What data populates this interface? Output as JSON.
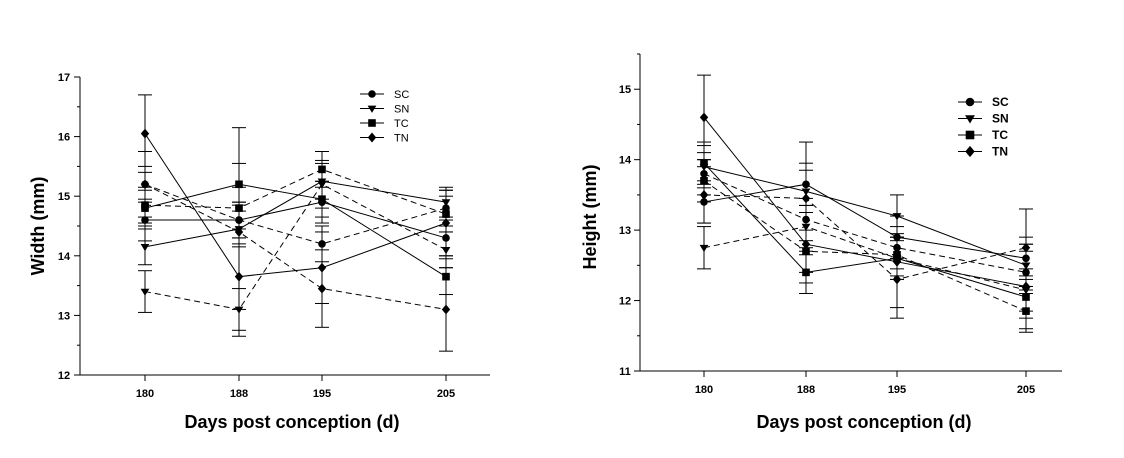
{
  "chart_data": [
    {
      "type": "line",
      "title": "",
      "xlabel": "Days post conception (d)",
      "ylabel": "Width (mm)",
      "x": [
        180,
        188,
        195,
        205
      ],
      "ylim": [
        12,
        17
      ],
      "yticks": [
        12,
        13,
        14,
        15,
        16,
        17
      ],
      "grid": false,
      "legend_position": "top-right",
      "legend": [
        "SC",
        "SN",
        "TC",
        "TN"
      ],
      "series": [
        {
          "marker": "circle",
          "dash": "solid",
          "values": [
            14.6,
            14.6,
            14.9,
            14.3
          ],
          "errors": [
            0.35,
            0.3,
            0.35,
            0.3
          ]
        },
        {
          "marker": "circle",
          "dash": "dashed",
          "values": [
            15.2,
            14.6,
            14.2,
            14.8
          ],
          "errors": [
            0.3,
            0.3,
            0.3,
            0.3
          ]
        },
        {
          "marker": "triangle-down",
          "dash": "solid",
          "values": [
            14.15,
            14.45,
            15.25,
            14.9
          ],
          "errors": [
            0.3,
            0.3,
            0.3,
            0.25
          ]
        },
        {
          "marker": "triangle-down",
          "dash": "dashed",
          "values": [
            13.4,
            13.1,
            15.2,
            14.1
          ],
          "errors": [
            0.35,
            0.35,
            0.4,
            0.3
          ]
        },
        {
          "marker": "square",
          "dash": "solid",
          "values": [
            14.8,
            15.2,
            14.95,
            13.65
          ],
          "errors": [
            0.3,
            0.35,
            0.3,
            0.3
          ]
        },
        {
          "marker": "square",
          "dash": "dashed",
          "values": [
            14.85,
            14.8,
            15.45,
            14.7
          ],
          "errors": [
            0.3,
            0.35,
            0.3,
            0.3
          ]
        },
        {
          "marker": "diamond",
          "dash": "solid",
          "values": [
            16.05,
            13.65,
            13.8,
            14.55
          ],
          "errors": [
            0.65,
            0.55,
            0.6,
            0.55
          ]
        },
        {
          "marker": "diamond",
          "dash": "dashed",
          "values": [
            15.2,
            14.4,
            13.45,
            13.1
          ],
          "errors": [
            0.55,
            1.75,
            0.65,
            0.7
          ]
        }
      ]
    },
    {
      "type": "line",
      "title": "",
      "xlabel": "Days post conception (d)",
      "ylabel": "Height (mm)",
      "x": [
        180,
        188,
        195,
        205
      ],
      "ylim": [
        11,
        15.5
      ],
      "yticks": [
        11,
        12,
        13,
        14,
        15
      ],
      "grid": false,
      "legend_position": "top-right",
      "legend": [
        "SC",
        "SN",
        "TC",
        "TN"
      ],
      "series": [
        {
          "marker": "circle",
          "dash": "solid",
          "values": [
            13.4,
            13.65,
            12.9,
            12.6
          ],
          "errors": [
            0.3,
            0.3,
            0.3,
            0.3
          ]
        },
        {
          "marker": "circle",
          "dash": "dashed",
          "values": [
            13.8,
            13.15,
            12.75,
            12.4
          ],
          "errors": [
            0.3,
            0.3,
            0.3,
            0.3
          ]
        },
        {
          "marker": "triangle-down",
          "dash": "solid",
          "values": [
            13.9,
            13.55,
            13.2,
            12.5
          ],
          "errors": [
            0.3,
            0.3,
            0.3,
            0.3
          ]
        },
        {
          "marker": "triangle-down",
          "dash": "dashed",
          "values": [
            12.75,
            13.05,
            12.6,
            12.15
          ],
          "errors": [
            0.3,
            0.3,
            0.3,
            0.3
          ]
        },
        {
          "marker": "square",
          "dash": "solid",
          "values": [
            13.95,
            12.4,
            12.6,
            12.05
          ],
          "errors": [
            0.3,
            0.3,
            0.3,
            0.3
          ]
        },
        {
          "marker": "square",
          "dash": "dashed",
          "values": [
            13.7,
            12.7,
            12.65,
            11.85
          ],
          "errors": [
            0.3,
            0.3,
            0.3,
            0.3
          ]
        },
        {
          "marker": "diamond",
          "dash": "solid",
          "values": [
            14.6,
            12.8,
            12.55,
            12.2
          ],
          "errors": [
            0.6,
            0.55,
            0.65,
            0.6
          ]
        },
        {
          "marker": "diamond",
          "dash": "dashed",
          "values": [
            13.5,
            13.45,
            12.3,
            12.75
          ],
          "errors": [
            0.4,
            0.8,
            0.55,
            0.55
          ]
        }
      ]
    }
  ]
}
